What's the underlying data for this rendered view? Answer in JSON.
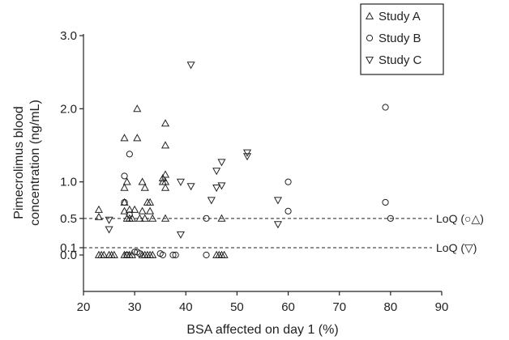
{
  "chart_data": {
    "type": "scatter",
    "xlabel": "BSA affected on day 1 (%)",
    "ylabel_lines": [
      "Pimecrolimus blood",
      "concentration (ng/mL)"
    ],
    "xlim": [
      20,
      90
    ],
    "ylim": [
      -0.5,
      3.0
    ],
    "xticks": [
      20,
      30,
      40,
      50,
      60,
      70,
      80,
      90
    ],
    "xtick_labels": [
      "20",
      "30",
      "40",
      "50",
      "60",
      "70",
      "80",
      "90"
    ],
    "yticks": [
      3.0,
      2.0,
      1.0,
      0.5,
      0.1,
      0.0
    ],
    "ytick_labels": [
      "3.0",
      "2.0",
      "1.0",
      "0.5",
      "0.1",
      "0.0"
    ],
    "grid": false,
    "legend_position": "top-right",
    "reference_lines": [
      {
        "y": 0.5,
        "style": "dashed",
        "label": "LoQ (○△)"
      },
      {
        "y": 0.1,
        "style": "dashed",
        "label": "LoQ (▽)"
      }
    ],
    "series": [
      {
        "name": "Study A",
        "marker": "triangle-up",
        "color": "#222222",
        "points": [
          [
            23,
            0.62
          ],
          [
            23,
            0.52
          ],
          [
            23,
            0
          ],
          [
            23.5,
            0
          ],
          [
            24,
            0
          ],
          [
            25,
            0
          ],
          [
            25.5,
            0
          ],
          [
            26,
            0
          ],
          [
            28,
            0
          ],
          [
            28.5,
            0
          ],
          [
            29,
            0
          ],
          [
            29.5,
            0
          ],
          [
            28,
            1.6
          ],
          [
            28,
            0.92
          ],
          [
            28,
            0.72
          ],
          [
            28,
            0.6
          ],
          [
            28.5,
            1.0
          ],
          [
            28.5,
            0.5
          ],
          [
            29,
            0.62
          ],
          [
            29,
            0.5
          ],
          [
            29.5,
            0.5
          ],
          [
            30,
            0.62
          ],
          [
            30.5,
            2.0
          ],
          [
            30.5,
            1.6
          ],
          [
            31,
            0.5
          ],
          [
            31.5,
            1.0
          ],
          [
            31.5,
            0.6
          ],
          [
            32,
            0.5
          ],
          [
            32,
            0.92
          ],
          [
            32.5,
            0.72
          ],
          [
            33,
            0.6
          ],
          [
            33,
            0.72
          ],
          [
            33.5,
            0.5
          ],
          [
            31.5,
            0
          ],
          [
            32,
            0
          ],
          [
            32.5,
            0
          ],
          [
            33,
            0
          ],
          [
            33.5,
            0
          ],
          [
            35.5,
            1.05
          ],
          [
            35.5,
            1.0
          ],
          [
            36,
            1.1
          ],
          [
            36,
            1.0
          ],
          [
            36,
            0.92
          ],
          [
            36,
            0.5
          ],
          [
            36,
            1.8
          ],
          [
            36,
            1.5
          ],
          [
            46,
            0
          ],
          [
            46.5,
            0
          ],
          [
            47,
            0
          ],
          [
            47.5,
            0
          ],
          [
            47,
            0.5
          ]
        ]
      },
      {
        "name": "Study B",
        "marker": "circle",
        "color": "#222222",
        "points": [
          [
            28,
            1.08
          ],
          [
            28,
            0.72
          ],
          [
            28.5,
            0
          ],
          [
            29,
            1.38
          ],
          [
            29,
            0.55
          ],
          [
            30,
            0.04
          ],
          [
            30.5,
            0.04
          ],
          [
            31,
            0.02
          ],
          [
            35,
            0.02
          ],
          [
            35.5,
            0
          ],
          [
            37.5,
            0
          ],
          [
            38,
            0
          ],
          [
            44,
            0
          ],
          [
            44,
            0.5
          ],
          [
            60,
            1.0
          ],
          [
            60,
            0.6
          ],
          [
            79,
            2.02
          ],
          [
            79,
            0.72
          ],
          [
            80,
            0.5
          ]
        ]
      },
      {
        "name": "Study C",
        "marker": "triangle-down",
        "color": "#222222",
        "points": [
          [
            25,
            0.48
          ],
          [
            25,
            0.35
          ],
          [
            39,
            1.0
          ],
          [
            39,
            0.28
          ],
          [
            41,
            2.6
          ],
          [
            41,
            0.94
          ],
          [
            45,
            0.75
          ],
          [
            46,
            1.15
          ],
          [
            46,
            0.92
          ],
          [
            47,
            1.27
          ],
          [
            47,
            0.95
          ],
          [
            52,
            1.4
          ],
          [
            52,
            1.35
          ],
          [
            58,
            0.75
          ],
          [
            58,
            0.42
          ]
        ]
      }
    ]
  }
}
